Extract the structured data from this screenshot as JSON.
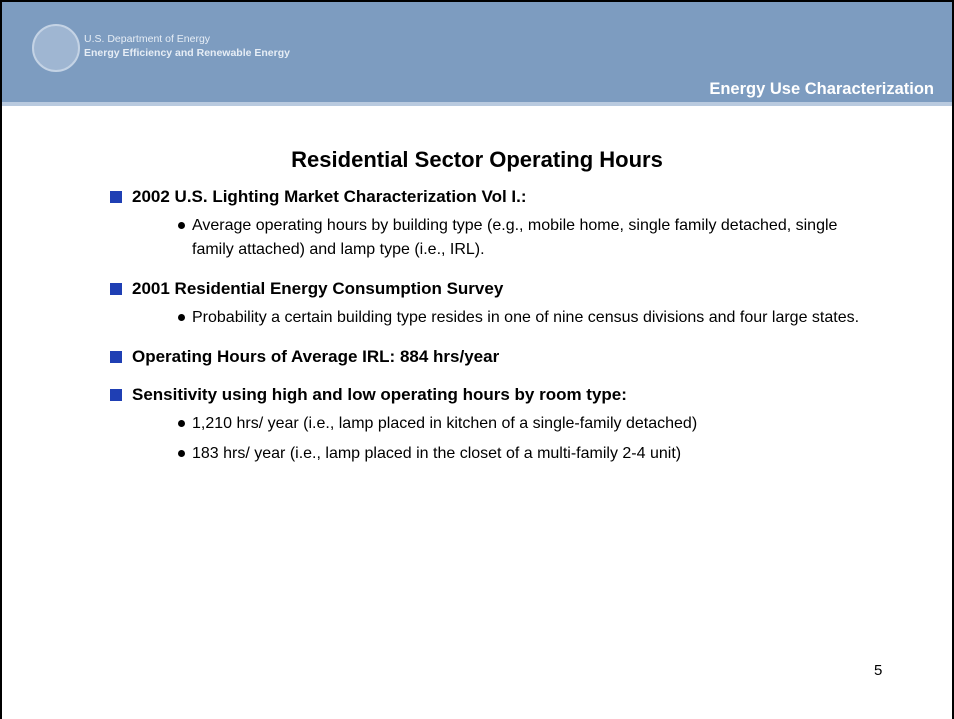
{
  "header": {
    "org_line1": "U.S. Department of Energy",
    "org_line2": "Energy Efficiency and Renewable Energy",
    "section": "Energy Use Characterization"
  },
  "title": "Residential Sector Operating Hours",
  "bullets": [
    {
      "text": "2002 U.S. Lighting Market Characterization Vol I.:",
      "subs": [
        "Average operating hours by building type (e.g., mobile home, single family detached, single family attached) and lamp type (i.e., IRL)."
      ]
    },
    {
      "text": "2001 Residential Energy Consumption Survey",
      "subs": [
        "Probability a certain building type resides in one of nine census divisions and four large states."
      ]
    },
    {
      "text": "Operating Hours of Average IRL: 884 hrs/year",
      "subs": []
    },
    {
      "text": "Sensitivity using high and low operating hours by room type:",
      "subs": [
        "1,210 hrs/ year (i.e., lamp placed in kitchen of a single-family detached)",
        "183 hrs/ year (i.e., lamp placed in the closet of a multi-family 2-4 unit)"
      ]
    }
  ],
  "page_number": "5"
}
